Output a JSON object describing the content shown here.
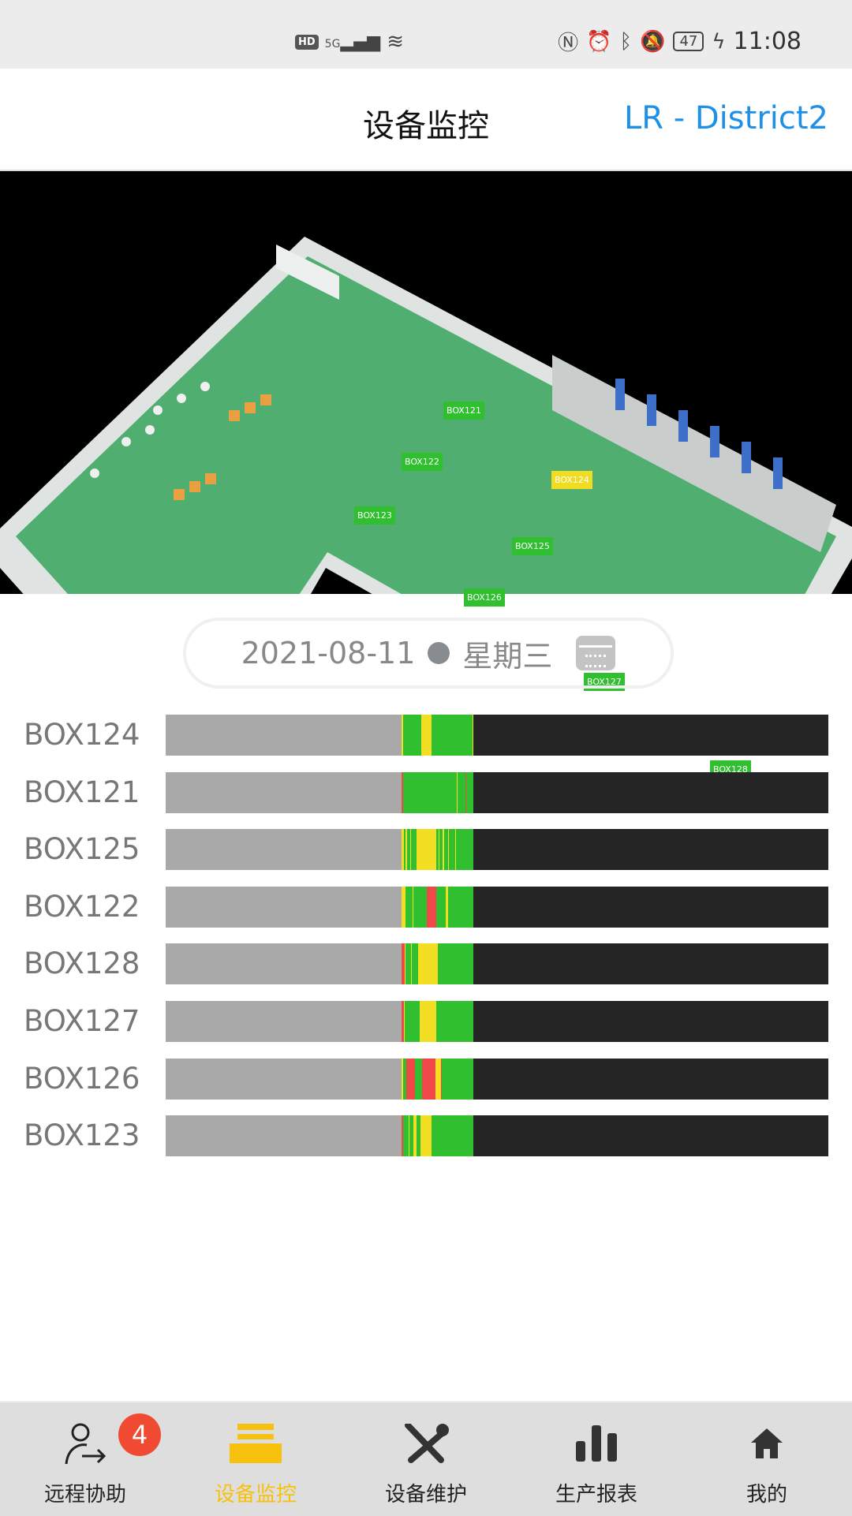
{
  "status_bar": {
    "hd": "HD",
    "network": "5G",
    "battery": "47",
    "time": "11:08"
  },
  "header": {
    "title": "设备监控",
    "district": "LR - District2"
  },
  "map": {
    "tags": [
      {
        "label": "BOX121",
        "status": "ok"
      },
      {
        "label": "BOX122",
        "status": "ok"
      },
      {
        "label": "BOX123",
        "status": "ok"
      },
      {
        "label": "BOX124",
        "status": "warn"
      },
      {
        "label": "BOX125",
        "status": "ok"
      },
      {
        "label": "BOX126",
        "status": "ok"
      },
      {
        "label": "BOX127",
        "status": "ok"
      },
      {
        "label": "BOX128",
        "status": "ok"
      }
    ]
  },
  "date": {
    "value": "2021-08-11",
    "weekday": "星期三",
    "icon": "calendar-icon"
  },
  "colors": {
    "offline": "#a9a9a9",
    "future": "#252525",
    "g": "#2fbf2f",
    "y": "#f2de22",
    "r": "#f04848",
    "accent": "#1e90e8",
    "active_nav": "#f7c10d"
  },
  "timeline": {
    "note_current_fraction": 0.464,
    "rows": [
      {
        "name": "BOX124",
        "segments": [
          [
            0.356,
            0.358,
            "y"
          ],
          [
            0.358,
            0.386,
            "g"
          ],
          [
            0.386,
            0.401,
            "y"
          ],
          [
            0.401,
            0.463,
            "g"
          ],
          [
            0.463,
            0.464,
            "y"
          ]
        ]
      },
      {
        "name": "BOX121",
        "segments": [
          [
            0.356,
            0.358,
            "r"
          ],
          [
            0.358,
            0.439,
            "g"
          ],
          [
            0.439,
            0.44,
            "y"
          ],
          [
            0.44,
            0.452,
            "g"
          ],
          [
            0.452,
            0.454,
            "r"
          ],
          [
            0.454,
            0.464,
            "g"
          ]
        ]
      },
      {
        "name": "BOX125",
        "segments": [
          [
            0.356,
            0.359,
            "y"
          ],
          [
            0.359,
            0.362,
            "g"
          ],
          [
            0.362,
            0.364,
            "y"
          ],
          [
            0.364,
            0.369,
            "g"
          ],
          [
            0.369,
            0.37,
            "y"
          ],
          [
            0.37,
            0.379,
            "g"
          ],
          [
            0.379,
            0.408,
            "y"
          ],
          [
            0.408,
            0.412,
            "g"
          ],
          [
            0.412,
            0.413,
            "y"
          ],
          [
            0.413,
            0.418,
            "g"
          ],
          [
            0.418,
            0.42,
            "y"
          ],
          [
            0.42,
            0.426,
            "g"
          ],
          [
            0.426,
            0.427,
            "y"
          ],
          [
            0.427,
            0.437,
            "g"
          ],
          [
            0.437,
            0.438,
            "y"
          ],
          [
            0.438,
            0.464,
            "g"
          ]
        ]
      },
      {
        "name": "BOX122",
        "segments": [
          [
            0.356,
            0.362,
            "y"
          ],
          [
            0.362,
            0.373,
            "g"
          ],
          [
            0.373,
            0.374,
            "y"
          ],
          [
            0.374,
            0.394,
            "g"
          ],
          [
            0.394,
            0.408,
            "r"
          ],
          [
            0.408,
            0.423,
            "g"
          ],
          [
            0.423,
            0.426,
            "y"
          ],
          [
            0.426,
            0.464,
            "g"
          ]
        ]
      },
      {
        "name": "BOX128",
        "segments": [
          [
            0.356,
            0.361,
            "r"
          ],
          [
            0.361,
            0.362,
            "y"
          ],
          [
            0.362,
            0.37,
            "g"
          ],
          [
            0.37,
            0.371,
            "y"
          ],
          [
            0.371,
            0.381,
            "g"
          ],
          [
            0.381,
            0.411,
            "y"
          ],
          [
            0.411,
            0.464,
            "g"
          ]
        ]
      },
      {
        "name": "BOX127",
        "segments": [
          [
            0.356,
            0.36,
            "r"
          ],
          [
            0.36,
            0.361,
            "y"
          ],
          [
            0.361,
            0.383,
            "g"
          ],
          [
            0.383,
            0.408,
            "y"
          ],
          [
            0.408,
            0.464,
            "g"
          ]
        ]
      },
      {
        "name": "BOX126",
        "segments": [
          [
            0.356,
            0.358,
            "y"
          ],
          [
            0.358,
            0.363,
            "g"
          ],
          [
            0.363,
            0.376,
            "r"
          ],
          [
            0.376,
            0.387,
            "g"
          ],
          [
            0.387,
            0.407,
            "r"
          ],
          [
            0.407,
            0.415,
            "y"
          ],
          [
            0.415,
            0.417,
            "r"
          ],
          [
            0.417,
            0.464,
            "g"
          ]
        ]
      },
      {
        "name": "BOX123",
        "segments": [
          [
            0.356,
            0.358,
            "r"
          ],
          [
            0.358,
            0.367,
            "g"
          ],
          [
            0.367,
            0.368,
            "y"
          ],
          [
            0.368,
            0.374,
            "g"
          ],
          [
            0.374,
            0.379,
            "y"
          ],
          [
            0.379,
            0.385,
            "g"
          ],
          [
            0.385,
            0.401,
            "y"
          ],
          [
            0.401,
            0.464,
            "g"
          ]
        ]
      }
    ]
  },
  "nav": {
    "items": [
      {
        "label": "远程协助",
        "icon": "remote-assist-icon",
        "badge": "4"
      },
      {
        "label": "设备监控",
        "icon": "monitor-stack-icon",
        "active": true
      },
      {
        "label": "设备维护",
        "icon": "wrench-screwdriver-icon"
      },
      {
        "label": "生产报表",
        "icon": "bar-chart-icon"
      },
      {
        "label": "我的",
        "icon": "home-icon"
      }
    ]
  }
}
